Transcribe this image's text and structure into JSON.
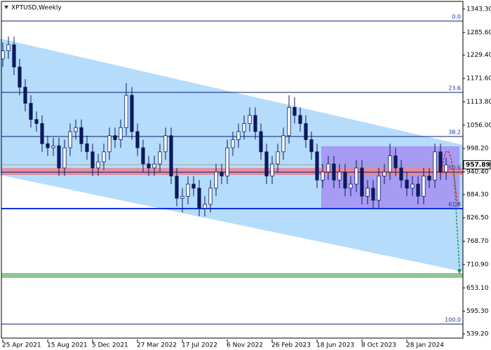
{
  "chart_data": {
    "type": "candlestick",
    "title": "XPTUSD,Weekly",
    "ylim": [
      525.3,
      1365.8
    ],
    "xlim": [
      -0.5,
      82
    ],
    "yticks": [
      {
        "value": 1343.3,
        "label": "1343.30"
      },
      {
        "value": 1285.6,
        "label": "1285.60"
      },
      {
        "value": 1229.4,
        "label": "1229.40"
      },
      {
        "value": 1171.6,
        "label": "1171.60"
      },
      {
        "value": 1113.8,
        "label": "1113.80"
      },
      {
        "value": 1056,
        "label": "1056.00"
      },
      {
        "value": 998.2,
        "label": "998.20"
      },
      {
        "value": 940.4,
        "label": "940.40"
      },
      {
        "value": 884.3,
        "label": "884.30"
      },
      {
        "value": 826.5,
        "label": "826.50"
      },
      {
        "value": 768.7,
        "label": "768.70"
      },
      {
        "value": 710.9,
        "label": "710.90"
      },
      {
        "value": 653.1,
        "label": "653.10"
      },
      {
        "value": 595.3,
        "label": "595.30"
      },
      {
        "value": 539.2,
        "label": "539.20"
      }
    ],
    "xticks": [
      {
        "value": 0,
        "label": "25 Apr 2021"
      },
      {
        "value": 8,
        "label": "15 Aug 2021"
      },
      {
        "value": 16,
        "label": "5 Dec 2021"
      },
      {
        "value": 24,
        "label": "27 Mar 2022"
      },
      {
        "value": 32,
        "label": "17 Jul 2022"
      },
      {
        "value": 40,
        "label": "6 Nov 2022"
      },
      {
        "value": 48,
        "label": "26 Feb 2023"
      },
      {
        "value": 56,
        "label": "18 Jun 2023"
      },
      {
        "value": 64,
        "label": "8 Oct 2023"
      },
      {
        "value": 72,
        "label": "28 Jan 2024"
      }
    ],
    "current_price": {
      "value": 957.89,
      "label": "957.89"
    },
    "fib_levels": [
      {
        "label": "0.0",
        "value": 1313.8
      },
      {
        "label": "23.6",
        "value": 1137.1
      },
      {
        "label": "38.2",
        "value": 1027.9
      },
      {
        "label": "50.0",
        "value": 939.5
      },
      {
        "label": "61.8",
        "value": 849.4
      },
      {
        "label": "100.0",
        "value": 563.5
      }
    ],
    "channel": {
      "x": [
        -0.5,
        82
      ],
      "upper": [
        1270.5,
        1007
      ],
      "lower": [
        932.5,
        693.4
      ],
      "color": "#b5dcfb"
    },
    "range_box": {
      "x": [
        56.75,
        81.4
      ],
      "high": 1003.6,
      "low": 851,
      "color": "#a58ff2"
    },
    "resistance_band": {
      "high": 949.9,
      "low": 932.5,
      "color": "#e58a9a"
    },
    "support_band": {
      "high": 689.9,
      "low": 677.8,
      "color": "#86c187"
    },
    "open": [
      1220,
      1240,
      1255,
      1200,
      1150,
      1110,
      1070,
      1060,
      1010,
      1000,
      1005,
      950,
      1000,
      1040,
      1050,
      1010,
      990,
      950,
      965,
      990,
      1030,
      1020,
      1050,
      1130,
      1040,
      1000,
      960,
      950,
      960,
      990,
      1030,
      930,
      875,
      880,
      910,
      900,
      850,
      860,
      900,
      940,
      930,
      1000,
      1020,
      1040,
      1060,
      1080,
      1040,
      990,
      930,
      960,
      990,
      1030,
      1100,
      1080,
      1060,
      1020,
      990,
      920,
      940,
      960,
      920,
      940,
      900,
      910,
      950,
      880,
      900,
      870,
      930,
      940,
      980,
      950,
      920,
      900,
      910,
      880,
      930,
      920,
      990,
      940
    ],
    "high": [
      1260,
      1275,
      1275,
      1220,
      1170,
      1130,
      1090,
      1080,
      1030,
      1025,
      1025,
      1020,
      1060,
      1070,
      1070,
      1030,
      1010,
      985,
      1010,
      1050,
      1050,
      1070,
      1160,
      1150,
      1060,
      1020,
      980,
      980,
      1010,
      1050,
      1050,
      950,
      900,
      930,
      930,
      920,
      880,
      920,
      960,
      960,
      1020,
      1040,
      1060,
      1080,
      1100,
      1100,
      1060,
      1010,
      980,
      1010,
      1050,
      1130,
      1125,
      1100,
      1080,
      1040,
      1010,
      960,
      980,
      980,
      960,
      960,
      930,
      970,
      970,
      920,
      920,
      950,
      960,
      1010,
      1000,
      970,
      940,
      930,
      930,
      950,
      950,
      1010,
      1010,
      975
    ],
    "low": [
      1200,
      1220,
      1180,
      1130,
      1090,
      1050,
      1040,
      990,
      980,
      980,
      930,
      930,
      980,
      1020,
      990,
      970,
      930,
      930,
      945,
      970,
      1000,
      1000,
      1030,
      1020,
      980,
      940,
      930,
      930,
      940,
      970,
      910,
      855,
      840,
      860,
      880,
      830,
      830,
      840,
      880,
      910,
      910,
      980,
      1000,
      1020,
      1040,
      1020,
      970,
      910,
      910,
      940,
      970,
      1010,
      1060,
      1040,
      1000,
      970,
      900,
      900,
      920,
      900,
      900,
      880,
      880,
      890,
      860,
      860,
      850,
      850,
      910,
      920,
      930,
      900,
      880,
      880,
      860,
      860,
      900,
      900,
      920,
      920
    ],
    "close": [
      1240,
      1255,
      1200,
      1150,
      1110,
      1070,
      1060,
      1010,
      1000,
      1005,
      950,
      1000,
      1040,
      1050,
      1010,
      990,
      950,
      965,
      990,
      1030,
      1020,
      1050,
      1130,
      1040,
      1000,
      960,
      950,
      960,
      990,
      1030,
      930,
      875,
      880,
      910,
      900,
      850,
      860,
      900,
      940,
      930,
      1000,
      1020,
      1040,
      1060,
      1080,
      1040,
      990,
      930,
      960,
      990,
      1030,
      1100,
      1080,
      1060,
      1020,
      990,
      920,
      940,
      960,
      920,
      940,
      900,
      910,
      950,
      880,
      900,
      870,
      930,
      940,
      980,
      950,
      920,
      900,
      910,
      880,
      930,
      920,
      990,
      940,
      958
    ]
  }
}
